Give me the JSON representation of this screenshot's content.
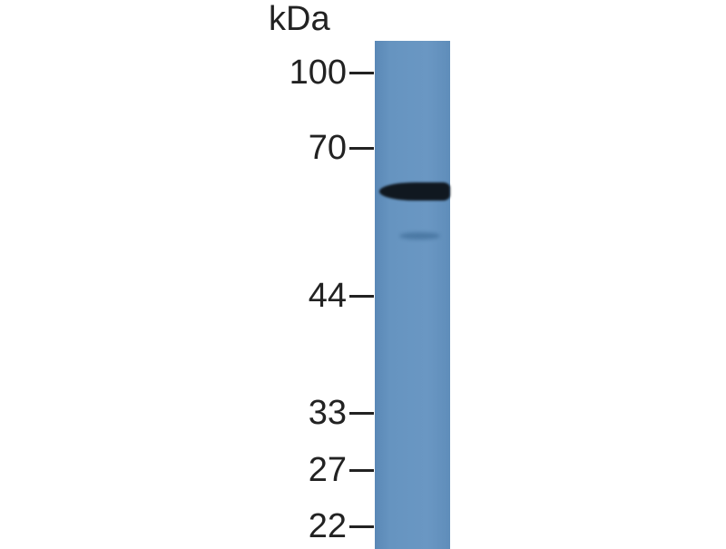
{
  "unit_label": "kDa",
  "markers": [
    "100",
    "70",
    "44",
    "33",
    "27",
    "22"
  ],
  "colors": {
    "membrane": "#6694c0",
    "band": "#101820",
    "text": "#222222"
  }
}
